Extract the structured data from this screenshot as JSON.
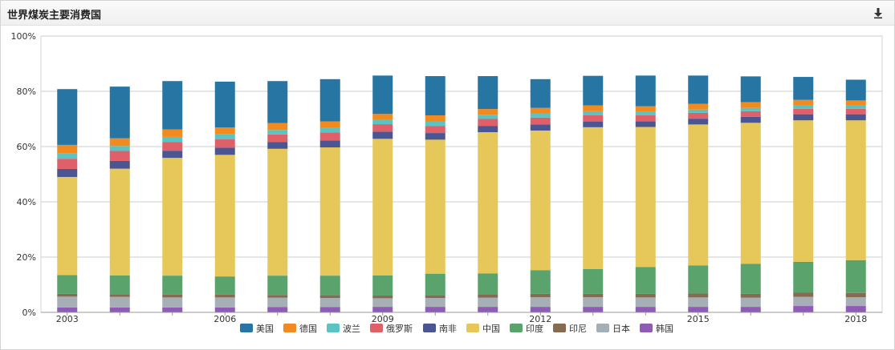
{
  "panel": {
    "title": "世界煤炭主要消费国",
    "download_icon": "download-icon"
  },
  "chart_data": {
    "type": "bar",
    "stacked": true,
    "normalized_percent": true,
    "title": "世界煤炭主要消费国",
    "categories": [
      "2003",
      "2004",
      "2005",
      "2006",
      "2007",
      "2008",
      "2009",
      "2010",
      "2011",
      "2012",
      "2013",
      "2014",
      "2015",
      "2016",
      "2017",
      "2018"
    ],
    "x_tick_labels": [
      "2003",
      "",
      "",
      "2006",
      "",
      "",
      "2009",
      "",
      "",
      "2012",
      "",
      "",
      "2015",
      "",
      "",
      "2018"
    ],
    "ylim": [
      0,
      100
    ],
    "y_ticks": [
      "0%",
      "20%",
      "40%",
      "60%",
      "80%",
      "100%"
    ],
    "legend_position": "bottom",
    "series": [
      {
        "name": "韩国",
        "color": "#8e5cb5",
        "values": [
          1.8,
          1.8,
          1.8,
          1.8,
          1.9,
          1.9,
          2.0,
          2.0,
          2.0,
          2.0,
          2.0,
          2.0,
          2.0,
          2.0,
          2.3,
          2.3
        ]
      },
      {
        "name": "日本",
        "color": "#a6aeb6",
        "values": [
          3.9,
          3.8,
          3.6,
          3.6,
          3.4,
          3.3,
          3.1,
          3.2,
          3.3,
          3.5,
          3.5,
          3.4,
          3.4,
          3.3,
          3.3,
          3.2
        ]
      },
      {
        "name": "印尼",
        "color": "#866b52",
        "values": [
          1.0,
          0.9,
          1.0,
          1.0,
          1.0,
          1.0,
          1.0,
          1.0,
          1.2,
          1.2,
          1.2,
          1.3,
          1.4,
          1.4,
          1.5,
          1.5
        ]
      },
      {
        "name": "印度",
        "color": "#5aa36c",
        "values": [
          6.8,
          6.9,
          6.9,
          6.6,
          7.0,
          7.1,
          7.3,
          7.8,
          7.6,
          8.6,
          9.0,
          9.7,
          10.2,
          10.9,
          11.2,
          11.9
        ]
      },
      {
        "name": "中国",
        "color": "#e5c75a",
        "values": [
          35.5,
          38.6,
          42.6,
          44.0,
          45.9,
          46.4,
          49.4,
          48.5,
          51.1,
          50.5,
          51.3,
          50.7,
          51.0,
          51.0,
          51.2,
          50.6
        ]
      },
      {
        "name": "南非",
        "color": "#4a5591",
        "values": [
          2.9,
          2.8,
          2.6,
          2.6,
          2.4,
          2.5,
          2.6,
          2.4,
          2.3,
          2.2,
          2.1,
          2.1,
          2.1,
          2.2,
          2.2,
          2.2
        ]
      },
      {
        "name": "俄罗斯",
        "color": "#e0606a",
        "values": [
          3.7,
          3.6,
          3.2,
          3.0,
          2.8,
          2.9,
          2.7,
          2.6,
          2.5,
          2.5,
          2.3,
          2.1,
          2.1,
          2.0,
          2.0,
          2.0
        ]
      },
      {
        "name": "波兰",
        "color": "#5bc3c2",
        "values": [
          2.0,
          1.8,
          1.8,
          1.8,
          1.6,
          1.6,
          1.5,
          1.5,
          1.5,
          1.4,
          1.4,
          1.2,
          1.2,
          1.2,
          1.2,
          1.2
        ]
      },
      {
        "name": "德国",
        "color": "#f18b1f",
        "values": [
          3.0,
          2.8,
          2.7,
          2.5,
          2.5,
          2.4,
          2.2,
          2.3,
          2.1,
          2.1,
          2.1,
          2.1,
          2.1,
          2.1,
          2.0,
          1.8
        ]
      },
      {
        "name": "美国",
        "color": "#2675a3",
        "values": [
          20.2,
          18.7,
          17.5,
          16.6,
          15.2,
          15.3,
          13.9,
          14.2,
          11.9,
          10.4,
          10.7,
          11.1,
          10.2,
          9.3,
          8.3,
          7.5
        ]
      }
    ],
    "legend_order": [
      "美国",
      "德国",
      "波兰",
      "俄罗斯",
      "南非",
      "中国",
      "印度",
      "印尼",
      "日本",
      "韩国"
    ]
  }
}
